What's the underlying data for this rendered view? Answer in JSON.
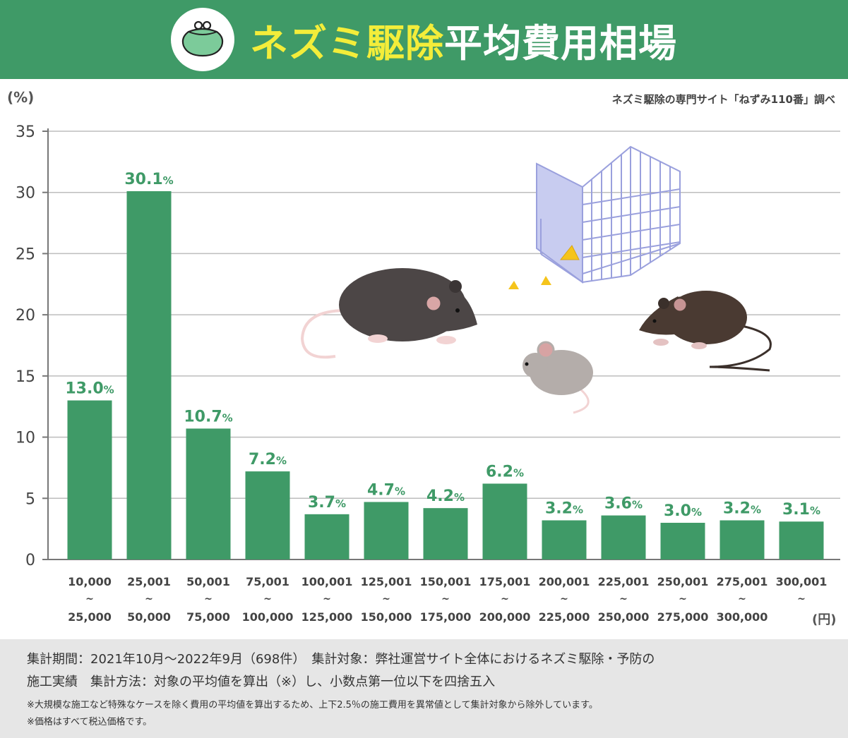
{
  "header": {
    "title_highlight": "ネズミ駆除",
    "title_rest": "平均費用相場",
    "icon": "coin-purse-icon",
    "background_color": "#3f9a67",
    "highlight_color": "#f3ed3a"
  },
  "source_note": "ネズミ駆除の専門サイト「ねずみ110番」調べ",
  "y_unit": "(%)",
  "x_unit": "(円)",
  "chart_data": {
    "type": "bar",
    "title": "ネズミ駆除平均費用相場",
    "xlabel": "(円)",
    "ylabel": "(%)",
    "ylim": [
      0,
      35
    ],
    "yticks": [
      0,
      5,
      10,
      15,
      20,
      25,
      30,
      35
    ],
    "grid": true,
    "bar_color": "#3f9a67",
    "label_color": "#3f9a67",
    "categories": [
      [
        "10,000",
        "~",
        "25,000"
      ],
      [
        "25,001",
        "~",
        "50,000"
      ],
      [
        "50,001",
        "~",
        "75,000"
      ],
      [
        "75,001",
        "~",
        "100,000"
      ],
      [
        "100,001",
        "~",
        "125,000"
      ],
      [
        "125,001",
        "~",
        "150,000"
      ],
      [
        "150,001",
        "~",
        "175,000"
      ],
      [
        "175,001",
        "~",
        "200,000"
      ],
      [
        "200,001",
        "~",
        "225,000"
      ],
      [
        "225,001",
        "~",
        "250,000"
      ],
      [
        "250,001",
        "~",
        "275,000"
      ],
      [
        "275,001",
        "~",
        "300,000"
      ],
      [
        "300,001",
        "~",
        ""
      ]
    ],
    "values": [
      13.0,
      30.1,
      10.7,
      7.2,
      3.7,
      4.7,
      4.2,
      6.2,
      3.2,
      3.6,
      3.0,
      3.2,
      3.1
    ],
    "value_labels": [
      "13.0",
      "30.1",
      "10.7",
      "7.2",
      "3.7",
      "4.7",
      "4.2",
      "6.2",
      "3.2",
      "3.6",
      "3.0",
      "3.2",
      "3.1"
    ],
    "value_suffix": "%"
  },
  "illustration": {
    "items": [
      "rat-icon",
      "mouse-icon",
      "brown-rat-icon",
      "cage-trap-icon",
      "cheese-icon"
    ]
  },
  "footer": {
    "line1": "集計期間：2021年10月～2022年9月（698件）　集計対象：弊社運営サイト全体におけるネズミ駆除・予防の",
    "line2": "施工実績　集計方法：対象の平均値を算出（※）し、小数点第一位以下を四捨五入",
    "note1": "※大規模な施工など特殊なケースを除く費用の平均値を算出するため、上下2.5％の施工費用を異常値として集計対象から除外しています。",
    "note2": "※価格はすべて税込価格です。"
  }
}
